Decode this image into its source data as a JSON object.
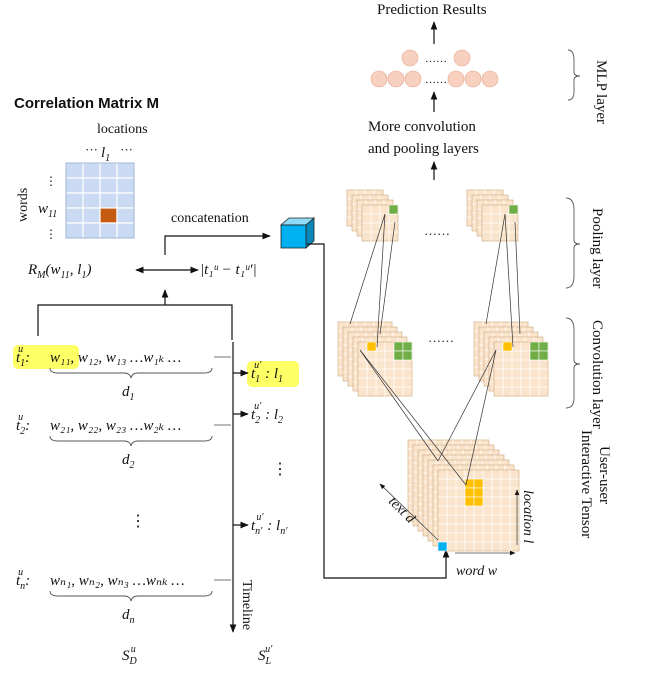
{
  "title_bold": "Correlation Matrix M",
  "matrix": {
    "locations_label": "locations",
    "words_label": "words",
    "col_label": "l",
    "col_sub": "1",
    "row_label": "w",
    "row_sub": "11",
    "dots_h": "···",
    "dots_v": "⋮",
    "colors": {
      "cell": "#c9daf2",
      "highlight": "#c55a11"
    }
  },
  "concat": {
    "label": "concatenation",
    "rm_pre": "R",
    "rm_sub": "M",
    "rm_args": "(w",
    "rm_args_sub": "11",
    "rm_args2": ", l",
    "rm_args2_sub": "1",
    "rm_close": ")",
    "diff_text": "|t₁ᵘ − t₁ᵘ′|"
  },
  "left_docs": [
    {
      "t": "t",
      "t_sub": "1",
      "words": "w₁₁, w₁₂, w₁₃ …w₁ₖ …",
      "d": "d",
      "d_sub": "1"
    },
    {
      "t": "t",
      "t_sub": "2",
      "words": "w₂₁, w₂₂, w₂₃ …w₂ₖ …",
      "d": "d",
      "d_sub": "2"
    },
    {
      "t": "t",
      "t_sub": "n",
      "words": "wₙ₁, wₙ₂, wₙ₃ …wₙₖ …",
      "d": "d",
      "d_sub": "n"
    }
  ],
  "right_locs": [
    {
      "t": "t",
      "t_sub": "1",
      "l": "l",
      "l_sub": "1"
    },
    {
      "t": "t",
      "t_sub": "2",
      "l": "l",
      "l_sub": "2"
    },
    {
      "t": "t",
      "t_sub": "n′",
      "l": "l",
      "l_sub": "n′"
    }
  ],
  "timeline_label": "Timeline",
  "sd_label": "S",
  "sd_sub": "D",
  "sd_sup": "u",
  "sl_label": "S",
  "sl_sub": "L",
  "sl_sup": "u′",
  "vdots": "⋮",
  "ellipsis": "……",
  "network": {
    "prediction": "Prediction Results",
    "mlp_label": "MLP layer",
    "more_conv_1": "More convolution",
    "more_conv_2": "and pooling layers",
    "pooling_label": "Pooling layer",
    "conv_label": "Convolution layer",
    "tensor_label_1": "User-user",
    "tensor_label_2": "Interactive Tensor",
    "text_axis": "text d",
    "location_axis": "location l",
    "word_axis": "word w",
    "colors": {
      "neuron": "#f7d0c0",
      "grid": "#fbe4cc",
      "green": "#70ad47",
      "orange": "#ffc000",
      "blue": "#00b0f0",
      "yellow": "#ffff66"
    }
  }
}
